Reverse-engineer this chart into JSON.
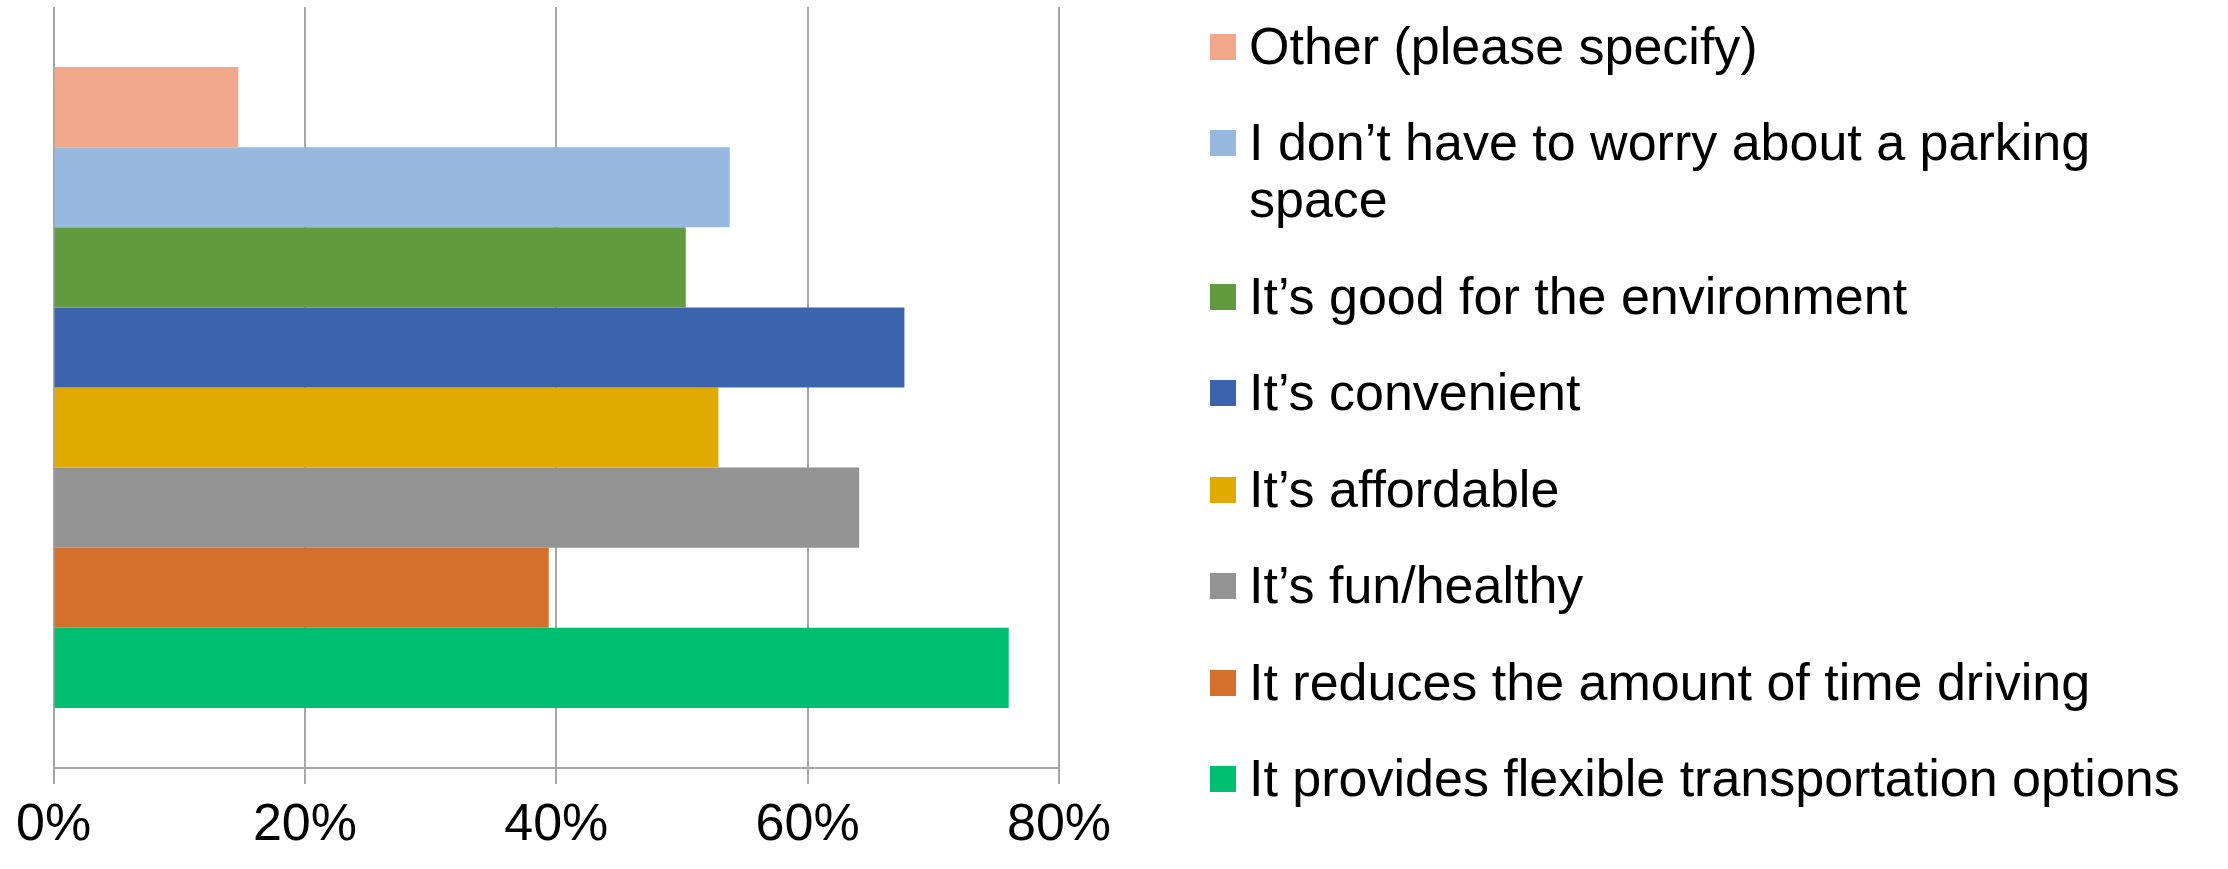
{
  "chart_data": {
    "type": "bar",
    "orientation": "horizontal",
    "categories": [
      null
    ],
    "series": [
      {
        "name": "Other (please specify)",
        "color": "#f1a88a",
        "values": [
          14.7
        ]
      },
      {
        "name": "I don’t have to worry about a parking space",
        "color": "#97b8df",
        "values": [
          53.8
        ]
      },
      {
        "name": "It’s good for the environment",
        "color": "#629a3f",
        "values": [
          50.3
        ]
      },
      {
        "name": "It’s convenient",
        "color": "#3c64ad",
        "values": [
          67.7
        ]
      },
      {
        "name": "It’s affordable",
        "color": "#e1aa00",
        "values": [
          52.9
        ]
      },
      {
        "name": "It’s fun/healthy",
        "color": "#939393",
        "values": [
          64.1
        ]
      },
      {
        "name": "It reduces the amount of time driving",
        "color": "#d4702b",
        "values": [
          39.4
        ]
      },
      {
        "name": "It provides flexible transportation options",
        "color": "#00be70",
        "values": [
          76.0
        ]
      }
    ],
    "xlim": [
      0,
      80
    ],
    "xticks": [
      {
        "value": 0,
        "label": "0%"
      },
      {
        "value": 20,
        "label": "20%"
      },
      {
        "value": 40,
        "label": "40%"
      },
      {
        "value": 60,
        "label": "60%"
      },
      {
        "value": 80,
        "label": "80%"
      }
    ],
    "grid": "x",
    "legend": "right"
  }
}
